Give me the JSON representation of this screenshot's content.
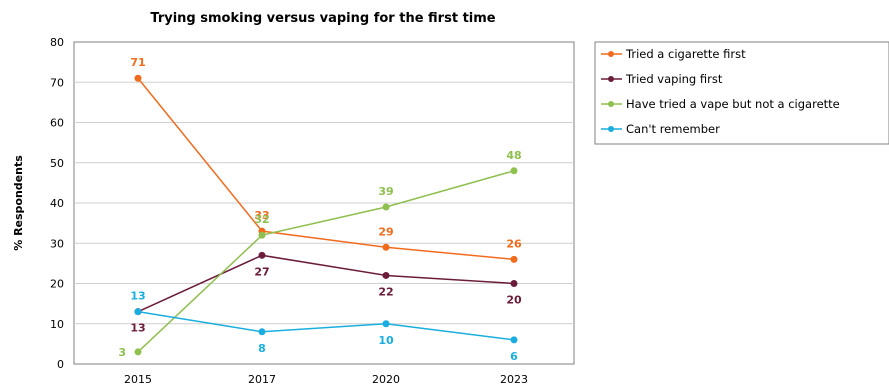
{
  "chart_data": {
    "type": "line",
    "title": "Trying smoking versus vaping for the first time",
    "ylabel": "% Respondents",
    "xlabel": "",
    "categories": [
      "2015",
      "2017",
      "2020",
      "2023"
    ],
    "ylim": [
      0,
      80
    ],
    "yticks": [
      "0",
      "10",
      "20",
      "30",
      "40",
      "50",
      "60",
      "70",
      "80"
    ],
    "grid": true,
    "legend_position": "right",
    "series": [
      {
        "name": "Tried a cigarette first",
        "color": "#f26b1d",
        "values": [
          71,
          33,
          29,
          26
        ],
        "labels": [
          "71",
          "33",
          "29",
          "26"
        ],
        "label_pos": [
          "above",
          "above",
          "above",
          "above"
        ]
      },
      {
        "name": "Tried vaping first",
        "color": "#6b1c3a",
        "values": [
          13,
          27,
          22,
          20
        ],
        "labels": [
          "13",
          "27",
          "22",
          "20"
        ],
        "label_pos": [
          "below",
          "below",
          "below",
          "below"
        ]
      },
      {
        "name": "Have tried a vape but not a cigarette",
        "color": "#8fbf4f",
        "values": [
          3,
          32,
          39,
          48
        ],
        "labels": [
          "3",
          "32",
          "39",
          "48"
        ],
        "label_pos": [
          "left",
          "above",
          "above",
          "above"
        ]
      },
      {
        "name": "Can't remember",
        "color": "#1aaee0",
        "values": [
          13,
          8,
          10,
          6
        ],
        "labels": [
          "13",
          "8",
          "10",
          "6"
        ],
        "label_pos": [
          "above",
          "below",
          "below",
          "below"
        ]
      }
    ]
  }
}
